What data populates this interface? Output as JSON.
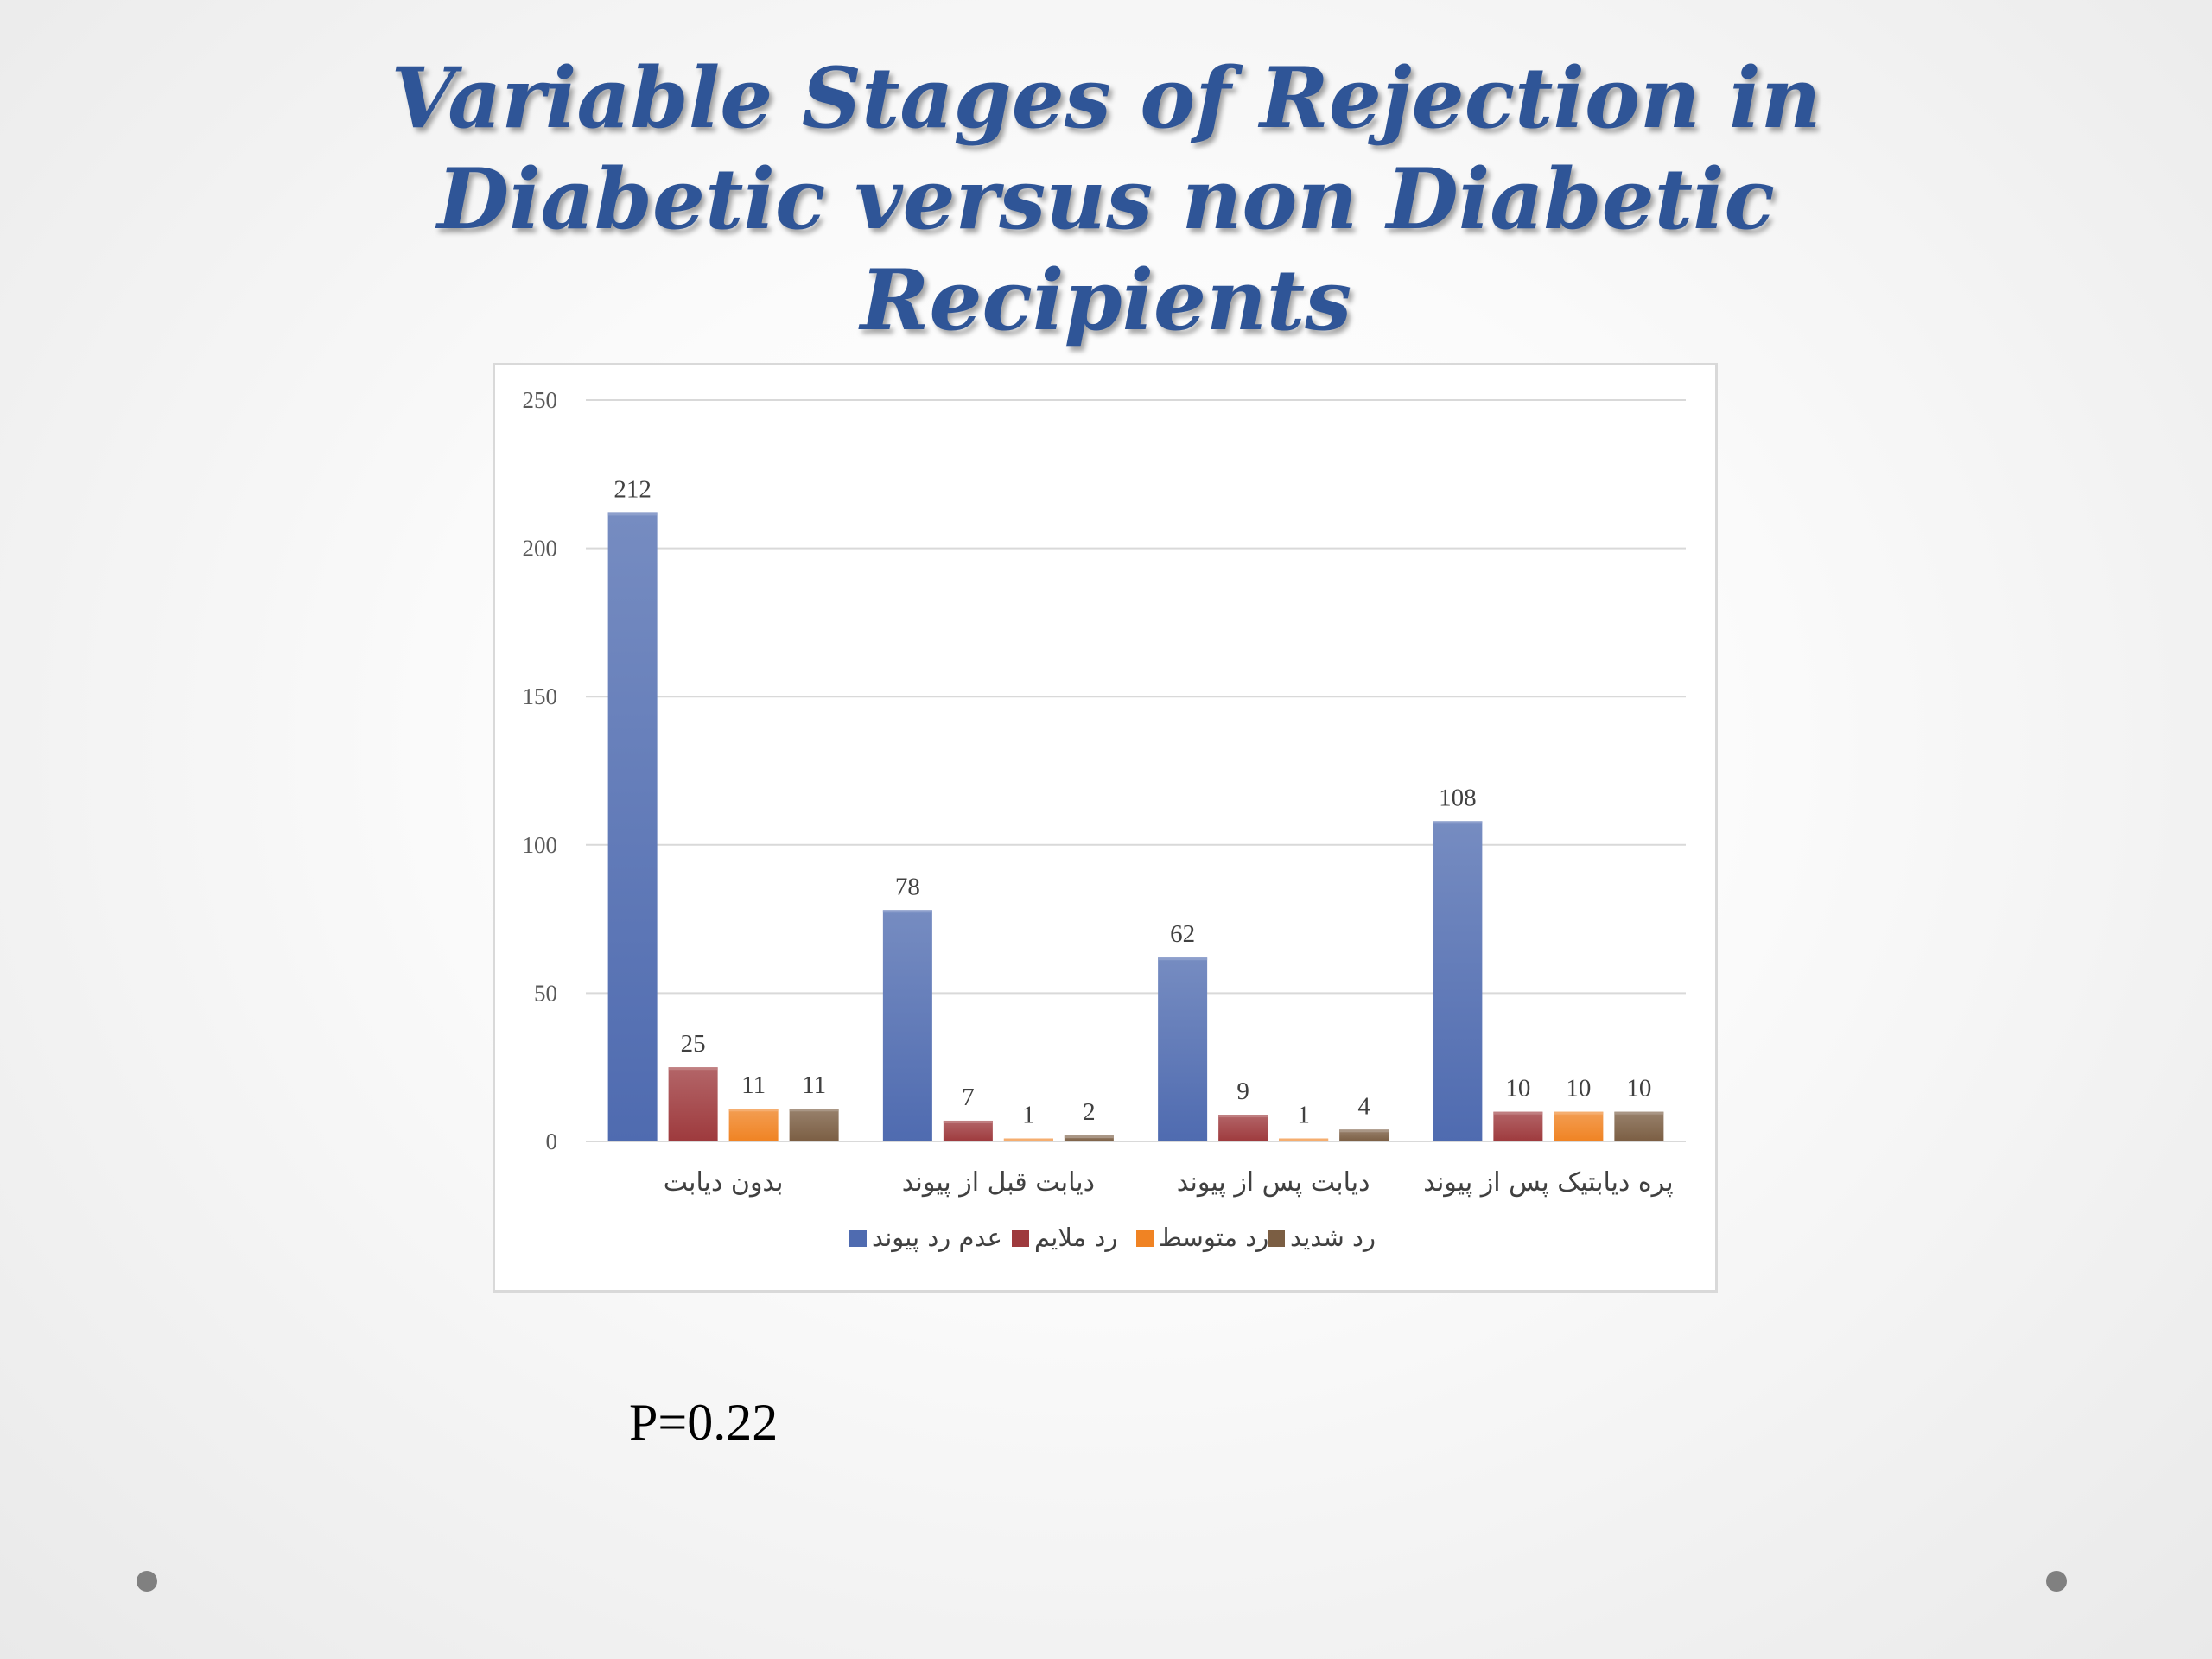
{
  "slide": {
    "title_lines": [
      "Variable Stages of Rejection in",
      "Diabetic versus non Diabetic",
      "Recipients"
    ],
    "p_value": "P=0.22"
  },
  "chart_data": {
    "type": "bar",
    "categories": [
      "بدون دیابت",
      "دیابت قبل از پیوند",
      "دیابت پس از پیوند",
      "پره دیابتیک پس از پیوند"
    ],
    "series": [
      {
        "name": "عدم رد پیوند",
        "values": [
          212,
          78,
          62,
          108
        ],
        "color": "#4f6bb0"
      },
      {
        "name": "رد ملایم",
        "values": [
          25,
          7,
          9,
          10
        ],
        "color": "#9e3a3d"
      },
      {
        "name": "رد متوسط",
        "values": [
          11,
          1,
          1,
          10
        ],
        "color": "#f08323"
      },
      {
        "name": "رد شدید",
        "values": [
          11,
          2,
          4,
          10
        ],
        "color": "#7b5e43"
      }
    ],
    "ylim": [
      0,
      250
    ],
    "yticks": [
      0,
      50,
      100,
      150,
      200,
      250
    ],
    "grid": true,
    "legend_position": "bottom",
    "data_labels": true
  }
}
